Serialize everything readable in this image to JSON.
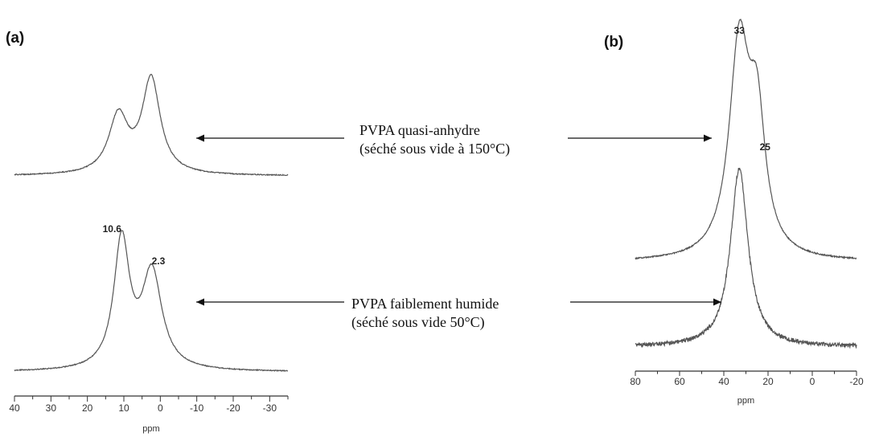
{
  "panels": {
    "a_label": "(a)",
    "b_label": "(b)"
  },
  "annotations": {
    "top_line1": "PVPA quasi-anhydre",
    "top_line2": "(séché sous vide à 150°C)",
    "bottom_line1": "PVPA faiblement humide",
    "bottom_line2": "(séché sous vide 50°C)"
  },
  "chart_data": [
    {
      "type": "line",
      "panel": "(a)",
      "xlabel": "ppm",
      "xlim": [
        40,
        -35
      ],
      "xticks": [
        40,
        30,
        20,
        10,
        0,
        -10,
        -20,
        -30
      ],
      "xtick_labels": [
        "40",
        "30",
        "20",
        "10",
        "0",
        "-10",
        "-20",
        "-30"
      ],
      "series": [
        {
          "position": "upper",
          "peaks": [
            {
              "ppm": 11.5,
              "height": 1.0
            },
            {
              "ppm": 2.5,
              "height": 1.65
            }
          ],
          "labels": []
        },
        {
          "position": "lower",
          "peaks": [
            {
              "ppm": 10.6,
              "height": 1.6
            },
            {
              "ppm": 2.3,
              "height": 1.2
            }
          ],
          "labels": [
            "10.6",
            "2.3"
          ]
        }
      ]
    },
    {
      "type": "line",
      "panel": "(b)",
      "xlabel": "ppm",
      "xlim": [
        80,
        -20
      ],
      "xticks": [
        80,
        60,
        40,
        20,
        0,
        -20
      ],
      "xtick_labels": [
        "80",
        "60",
        "40",
        "20",
        "0",
        "-20"
      ],
      "series": [
        {
          "position": "upper",
          "peaks": [
            {
              "ppm": 33,
              "height": 1.0
            },
            {
              "ppm": 25,
              "height": 0.6
            }
          ],
          "labels": [
            "33",
            "25"
          ]
        },
        {
          "position": "lower",
          "peaks": [
            {
              "ppm": 33,
              "height": 1.0
            }
          ],
          "labels": []
        }
      ]
    }
  ]
}
